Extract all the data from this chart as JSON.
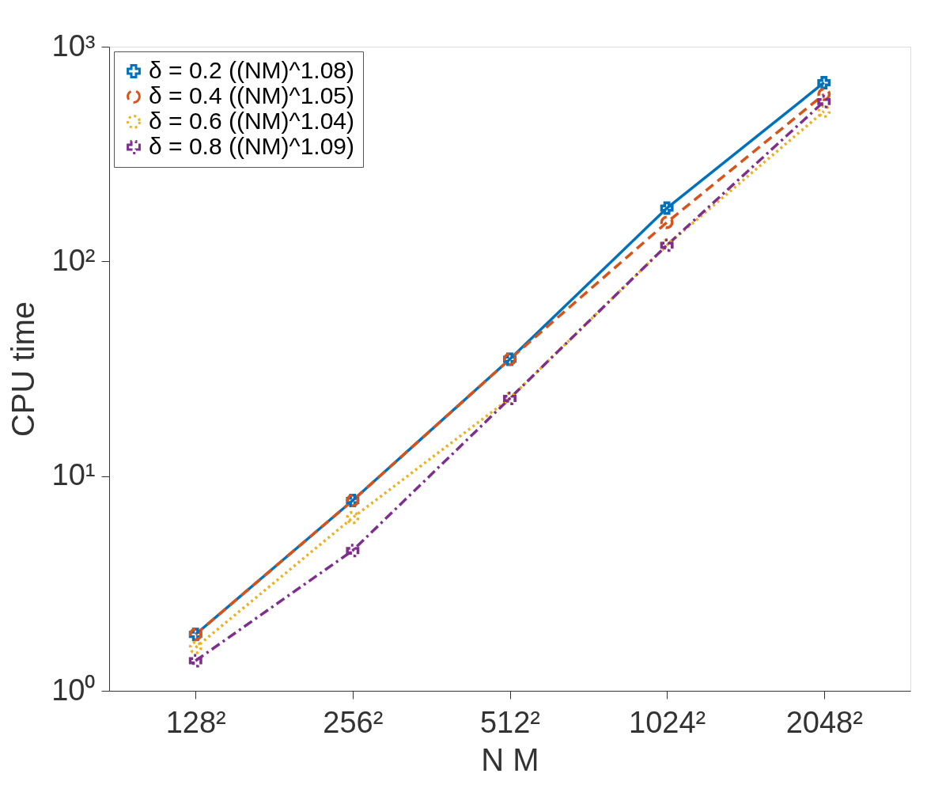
{
  "chart_data": {
    "type": "line",
    "xlabel": "N M",
    "ylabel": "CPU time",
    "log": "y",
    "grid": false,
    "legend": "top left",
    "categories": [
      "128²",
      "256²",
      "512²",
      "1024²",
      "2048²"
    ],
    "ylim": [
      1,
      1000
    ],
    "yticks": [
      {
        "value": 1,
        "label": "10⁰"
      },
      {
        "value": 10,
        "label": "10¹"
      },
      {
        "value": 100,
        "label": "10²"
      },
      {
        "value": 1000,
        "label": "10³"
      }
    ],
    "series": [
      {
        "name": "δ = 0.2 ((NM)^1.08)",
        "color": "#0072bd",
        "marker": "cross",
        "line_style": "solid",
        "values": [
          1.83,
          7.7,
          35,
          177,
          680
        ]
      },
      {
        "name": "δ = 0.4 ((NM)^1.05)",
        "color": "#d95319",
        "marker": "circle",
        "line_style": "dashed",
        "values": [
          1.83,
          7.7,
          35,
          152,
          600
        ]
      },
      {
        "name": "δ = 0.6 ((NM)^1.04)",
        "color": "#edb120",
        "marker": "circle",
        "line_style": "dotted",
        "values": [
          1.59,
          6.4,
          23,
          119,
          500
        ]
      },
      {
        "name": "δ = 0.8 ((NM)^1.09)",
        "color": "#7e2f8e",
        "marker": "cross",
        "line_style": "dashdot",
        "values": [
          1.38,
          4.5,
          23,
          119,
          555
        ]
      }
    ]
  }
}
